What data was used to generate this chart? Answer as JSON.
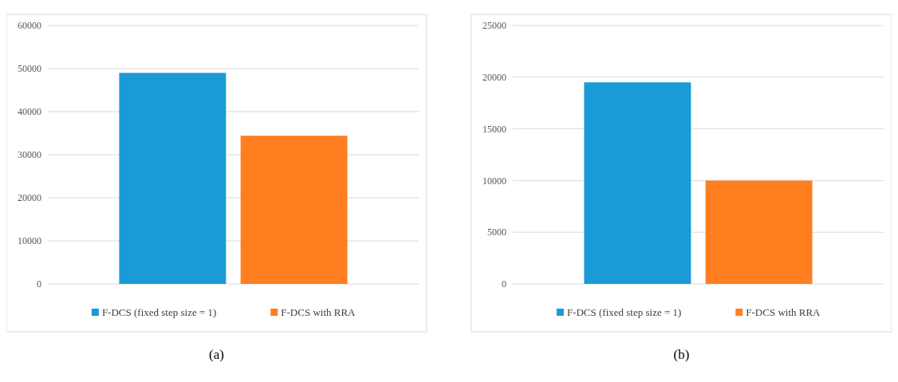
{
  "chart_data": [
    {
      "type": "bar",
      "categories": [
        null
      ],
      "series": [
        {
          "name": "F-DCS (fixed step size = 1)",
          "color": "#1a9bd7",
          "values": [
            49000
          ]
        },
        {
          "name": "F-DCS with RRA",
          "color": "#ff7f20",
          "values": [
            34400
          ]
        }
      ],
      "ylim": [
        0,
        60000
      ],
      "yticks": [
        0,
        10000,
        20000,
        30000,
        40000,
        50000,
        60000
      ],
      "grid": "y",
      "legend": "bottom",
      "annotations": [
        "(a)"
      ]
    },
    {
      "type": "bar",
      "categories": [
        null
      ],
      "series": [
        {
          "name": "F-DCS (fixed step size = 1)",
          "color": "#1a9bd7",
          "values": [
            19500
          ]
        },
        {
          "name": "F-DCS with RRA",
          "color": "#ff7f20",
          "values": [
            10000
          ]
        }
      ],
      "ylim": [
        0,
        25000
      ],
      "yticks": [
        0,
        5000,
        10000,
        15000,
        20000,
        25000
      ],
      "grid": "y",
      "legend": "bottom",
      "annotations": [
        "(b)"
      ]
    }
  ]
}
